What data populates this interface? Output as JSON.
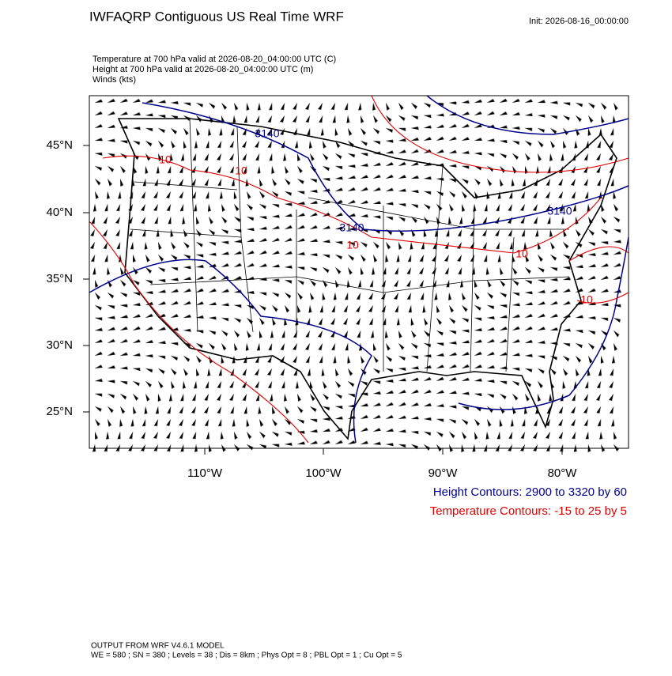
{
  "header": {
    "title": "IWFAQRP Contiguous US Real Time WRF",
    "init": "Init: 2026-08-16_00:00:00"
  },
  "fields": [
    "Temperature at 700 hPa valid at 2026-08-20_04:00:00 UTC   (C)",
    "Height at 700 hPa valid at 2026-08-20_04:00:00 UTC   (m)",
    "Winds   (kts)"
  ],
  "map": {
    "lat_labels": [
      "45°N",
      "40°N",
      "35°N",
      "30°N",
      "25°N"
    ],
    "lon_labels": [
      "110°W",
      "100°W",
      "90°W",
      "80°W"
    ],
    "height_labels": [
      "3140",
      "3140",
      "3140"
    ],
    "temperature_labels": [
      "10",
      "10",
      "10",
      "10",
      "10"
    ]
  },
  "legend": {
    "height": "Height Contours: 2900 to 3320 by 60",
    "temperature": "Temperature Contours: -15 to 25 by 5"
  },
  "footer": [
    "OUTPUT FROM WRF V4.6.1 MODEL",
    "WE = 580 ; SN = 380 ; Levels = 38 ; Dis = 8km ; Phys Opt = 8 ; PBL Opt = 1 ; Cu Opt = 5"
  ]
}
